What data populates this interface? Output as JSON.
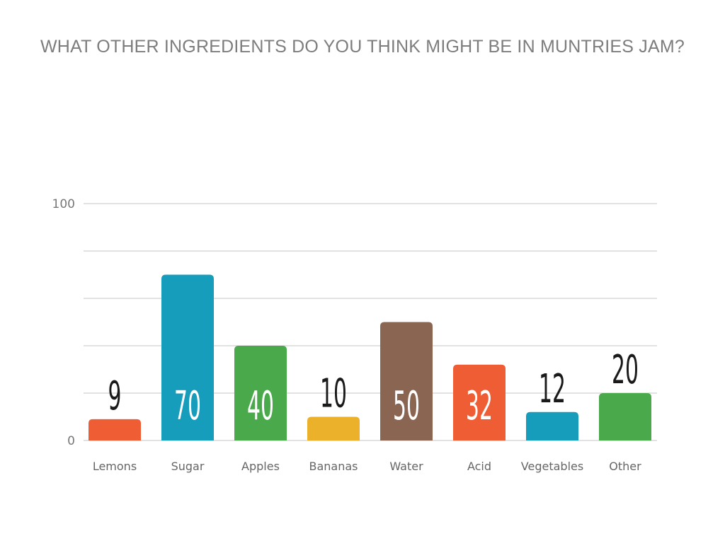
{
  "chart_data": {
    "type": "bar",
    "title": "WHAT OTHER INGREDIENTS DO YOU THINK MIGHT BE IN MUNTRIES JAM?",
    "xlabel": "",
    "ylabel": "",
    "ylim": [
      0,
      100
    ],
    "y_ticks": [
      "0",
      "100"
    ],
    "grid": true,
    "categories": [
      "Lemons",
      "Sugar",
      "Apples",
      "Bananas",
      "Water",
      "Acid",
      "Vegetables",
      "Other"
    ],
    "values": [
      9,
      70,
      40,
      10,
      50,
      32,
      12,
      20
    ],
    "data_labels": [
      "9",
      "70",
      "40",
      "10",
      "50",
      "32",
      "12",
      "20"
    ],
    "colors": [
      "#ef5d35",
      "#169dbb",
      "#4aa94a",
      "#ebb12b",
      "#8a6652",
      "#ef5d35",
      "#169dbb",
      "#4aa94a"
    ]
  }
}
